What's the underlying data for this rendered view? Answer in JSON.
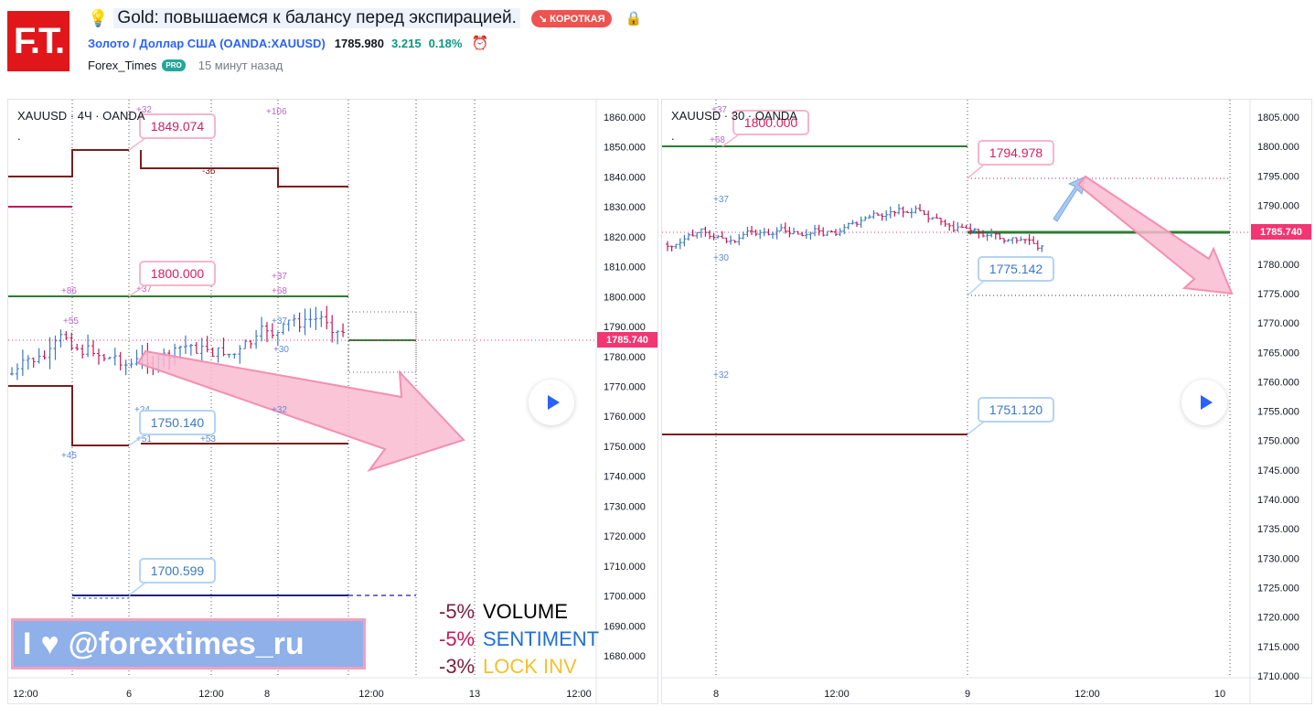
{
  "logo": {
    "text": "F.T."
  },
  "idea": {
    "icon": "lightbulb-icon",
    "title": "Gold: повышаемся к балансу перед экспирацией.",
    "badge": "↘ КОРОТКАЯ",
    "lock_icon": "lock-icon"
  },
  "symbol": {
    "name": "Золото / Доллар США (OANDA:XAUUSD)",
    "price": "1785.980",
    "change": "3.215",
    "change_pct": "0.18%",
    "alarm_icon": "alarm-clock-icon"
  },
  "author": {
    "name": "Forex_Times",
    "badge": "PRO",
    "time_ago": "15 минут назад"
  },
  "chart_data": [
    {
      "type": "line",
      "title": "XAUUSD · 4Ч · OANDA",
      "ylim": [
        1672,
        1864
      ],
      "y_ticks": [
        "1860.000",
        "1850.000",
        "1840.000",
        "1830.000",
        "1820.000",
        "1810.000",
        "1800.000",
        "1790.000",
        "1780.000",
        "1770.000",
        "1760.000",
        "1750.000",
        "1740.000",
        "1730.000",
        "1720.000",
        "1710.000",
        "1700.000",
        "1690.000",
        "1680.000"
      ],
      "x_ticks": [
        "12:00",
        "6",
        "12:00",
        "8",
        "12:00",
        "13",
        "12:00"
      ],
      "current_price": "1785.740",
      "labels": [
        {
          "text": "1849.074",
          "kind": "pink"
        },
        {
          "text": "1800.000",
          "kind": "pink"
        },
        {
          "text": "1750.140",
          "kind": "blue"
        },
        {
          "text": "1700.599",
          "kind": "blue"
        }
      ],
      "annotations": [
        "+32",
        "+106",
        "-36",
        "+86",
        "+37",
        "+37",
        "+68",
        "+55",
        "+37",
        "+30",
        "+24",
        "+32",
        "+45",
        "+51",
        "+53"
      ],
      "levels": [
        {
          "y": 1800,
          "color": "#2e7d32"
        },
        {
          "y": 1700,
          "color": "#1a237e"
        }
      ]
    },
    {
      "type": "line",
      "title": "XAUUSD · 30 · OANDA",
      "ylim": [
        1707,
        1808
      ],
      "y_ticks": [
        "1805.000",
        "1800.000",
        "1795.000",
        "1790.000",
        "1785.000",
        "1780.000",
        "1775.000",
        "1770.000",
        "1765.000",
        "1760.000",
        "1755.000",
        "1750.000",
        "1745.000",
        "1740.000",
        "1735.000",
        "1730.000",
        "1725.000",
        "1720.000",
        "1715.000",
        "1710.000"
      ],
      "x_ticks": [
        "8",
        "12:00",
        "9",
        "12:00",
        "10"
      ],
      "current_price": "1785.740",
      "labels": [
        {
          "text": "1800.000",
          "kind": "pink"
        },
        {
          "text": "1794.978",
          "kind": "pink"
        },
        {
          "text": "1775.142",
          "kind": "blue"
        },
        {
          "text": "1751.120",
          "kind": "blue"
        }
      ],
      "annotations": [
        "+37",
        "+68",
        "+37",
        "+30",
        "+32"
      ],
      "levels": [
        {
          "y": 1800,
          "color": "#2e7d32"
        },
        {
          "y": 1751.12,
          "color": "#7b1d1d"
        },
        {
          "y": 1785.74,
          "color": "#2e7d32"
        }
      ]
    }
  ],
  "watermark": {
    "text": "@forextimes_ru",
    "prefix": "I",
    "heart_icon": "heart-icon"
  },
  "stats": [
    {
      "pct": "-5%",
      "label": "VOLUME",
      "pct_color": "#7b1d3a",
      "label_color": "#000000"
    },
    {
      "pct": "-5%",
      "label": "SENTIMENT",
      "pct_color": "#c2185b",
      "label_color": "#1e6fd9"
    },
    {
      "pct": "-3%",
      "label": "LOCK INV",
      "pct_color": "#7b1d3a",
      "label_color": "#f2c12e"
    }
  ],
  "colors": {
    "accent": "#2962ff",
    "up": "#089981",
    "price_tag": "#f23673"
  }
}
